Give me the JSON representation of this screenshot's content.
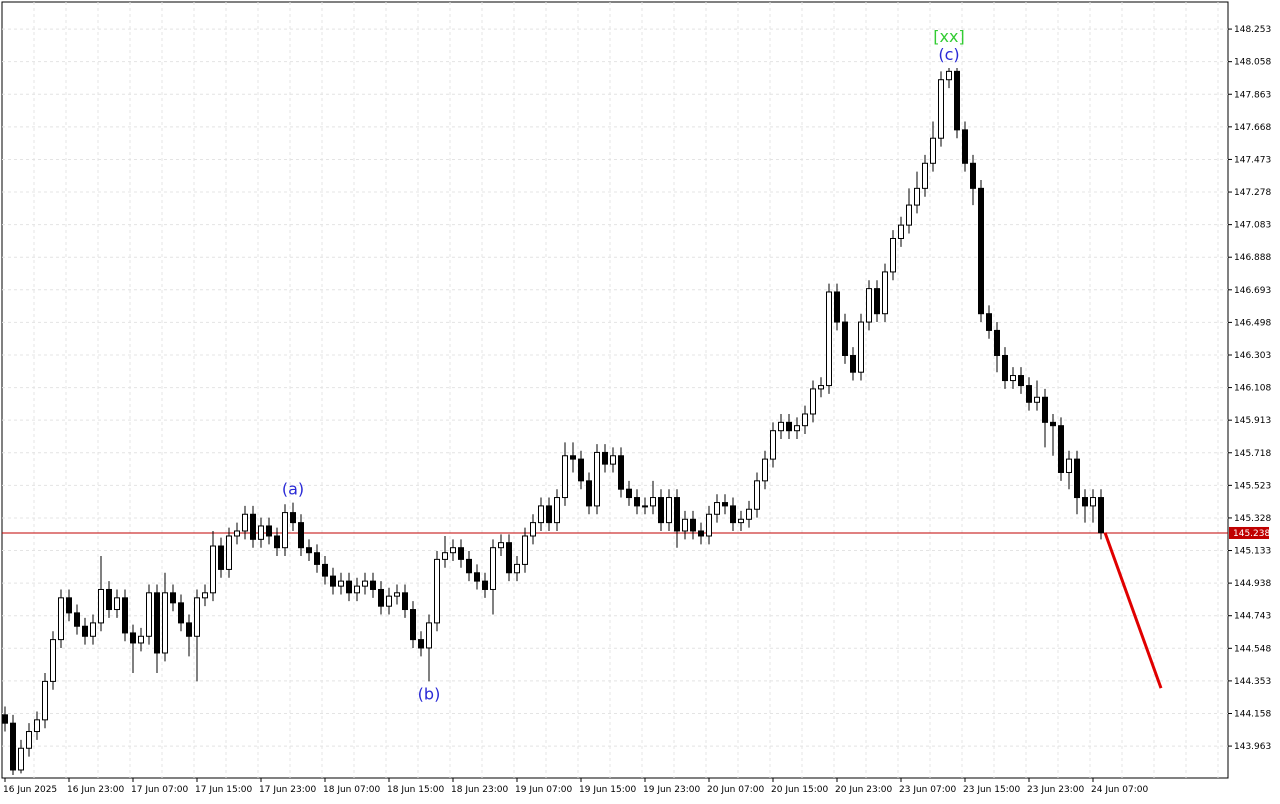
{
  "chart_data": {
    "type": "candlestick",
    "categories": [
      "16 Jun 2025",
      null,
      null,
      null,
      null,
      null,
      null,
      null,
      "16 Jun 23:00",
      null,
      null,
      null,
      null,
      null,
      null,
      null,
      "17 Jun 07:00",
      null,
      null,
      null,
      null,
      null,
      null,
      null,
      "17 Jun 15:00",
      null,
      null,
      null,
      null,
      null,
      null,
      null,
      "17 Jun 23:00",
      null,
      null,
      null,
      null,
      null,
      null,
      null,
      "18 Jun 07:00",
      null,
      null,
      null,
      null,
      null,
      null,
      null,
      "18 Jun 15:00",
      null,
      null,
      null,
      null,
      null,
      null,
      null,
      "18 Jun 23:00",
      null,
      null,
      null,
      null,
      null,
      null,
      null,
      "19 Jun 07:00",
      null,
      null,
      null,
      null,
      null,
      null,
      null,
      "19 Jun 15:00",
      null,
      null,
      null,
      null,
      null,
      null,
      null,
      "19 Jun 23:00",
      null,
      null,
      null,
      null,
      null,
      null,
      null,
      "20 Jun 07:00",
      null,
      null,
      null,
      null,
      null,
      null,
      null,
      "20 Jun 15:00",
      null,
      null,
      null,
      null,
      null,
      null,
      null,
      "20 Jun 23:00",
      null,
      null,
      null,
      null,
      null,
      null,
      null,
      "23 Jun 07:00",
      null,
      null,
      null,
      null,
      null,
      null,
      null,
      "23 Jun 15:00",
      null,
      null,
      null,
      null,
      null,
      null,
      null,
      "23 Jun 23:00",
      null,
      null,
      null,
      null,
      null,
      null,
      null,
      "24 Jun 07:00",
      null
    ],
    "open": [
      144.15,
      144.1,
      143.82,
      143.95,
      144.05,
      144.12,
      144.35,
      144.6,
      144.85,
      144.76,
      144.68,
      144.62,
      144.7,
      144.9,
      144.78,
      144.85,
      144.64,
      144.58,
      144.62,
      144.88,
      144.52,
      144.88,
      144.82,
      144.7,
      144.62,
      144.85,
      144.88,
      145.16,
      145.02,
      145.22,
      145.25,
      145.35,
      145.2,
      145.28,
      145.22,
      145.15,
      145.36,
      145.3,
      145.15,
      145.12,
      145.05,
      144.98,
      144.92,
      144.95,
      144.88,
      144.92,
      144.95,
      144.9,
      144.8,
      144.86,
      144.88,
      144.78,
      144.6,
      144.55,
      144.7,
      145.08,
      145.12,
      145.15,
      145.08,
      145.0,
      144.95,
      144.9,
      145.15,
      145.18,
      145.0,
      145.05,
      145.22,
      145.3,
      145.4,
      145.3,
      145.45,
      145.7,
      145.68,
      145.55,
      145.4,
      145.72,
      145.65,
      145.7,
      145.5,
      145.45,
      145.4,
      145.4,
      145.45,
      145.3,
      145.45,
      145.25,
      145.32,
      145.25,
      145.22,
      145.35,
      145.42,
      145.4,
      145.3,
      145.32,
      145.38,
      145.55,
      145.68,
      145.85,
      145.9,
      145.85,
      145.88,
      145.95,
      146.1,
      146.12,
      146.68,
      146.5,
      146.3,
      146.2,
      146.5,
      146.7,
      146.55,
      146.8,
      147.0,
      147.08,
      147.2,
      147.3,
      147.45,
      147.6,
      147.95,
      148.0,
      147.65,
      147.45,
      147.3,
      146.55,
      146.45,
      146.3,
      146.15,
      146.18,
      146.12,
      146.02,
      146.05,
      145.9,
      145.88,
      145.6,
      145.68,
      145.45,
      145.4,
      145.45
    ],
    "high": [
      144.2,
      144.15,
      144.0,
      144.1,
      144.17,
      144.4,
      144.65,
      144.9,
      144.9,
      144.81,
      144.73,
      144.75,
      145.1,
      144.95,
      144.9,
      144.9,
      144.69,
      144.67,
      144.93,
      144.93,
      145.0,
      144.93,
      144.87,
      144.75,
      144.9,
      144.93,
      145.25,
      145.21,
      145.27,
      145.3,
      145.4,
      145.4,
      145.33,
      145.33,
      145.27,
      145.41,
      145.42,
      145.35,
      145.2,
      145.17,
      145.1,
      145.03,
      145.0,
      145.0,
      144.97,
      145.0,
      145.0,
      144.95,
      144.91,
      144.93,
      144.93,
      144.83,
      144.65,
      144.75,
      145.13,
      145.22,
      145.2,
      145.2,
      145.13,
      145.05,
      145.0,
      145.2,
      145.23,
      145.23,
      145.1,
      145.27,
      145.35,
      145.45,
      145.45,
      145.5,
      145.78,
      145.78,
      145.73,
      145.6,
      145.77,
      145.77,
      145.75,
      145.75,
      145.55,
      145.5,
      145.45,
      145.55,
      145.5,
      145.5,
      145.5,
      145.37,
      145.37,
      145.3,
      145.4,
      145.47,
      145.47,
      145.45,
      145.37,
      145.43,
      145.6,
      145.73,
      145.9,
      145.95,
      145.95,
      145.93,
      146.0,
      146.15,
      146.17,
      146.73,
      146.73,
      146.55,
      146.35,
      146.55,
      146.75,
      146.75,
      146.85,
      147.05,
      147.13,
      147.3,
      147.4,
      147.5,
      147.7,
      148.0,
      148.02,
      148.02,
      147.7,
      147.5,
      147.35,
      146.6,
      146.5,
      146.35,
      146.23,
      146.23,
      146.17,
      146.15,
      146.1,
      145.95,
      145.93,
      145.73,
      145.73,
      145.5,
      145.5,
      145.5
    ],
    "low": [
      144.05,
      143.79,
      143.8,
      143.9,
      144.0,
      144.07,
      144.3,
      144.55,
      144.71,
      144.63,
      144.57,
      144.57,
      144.65,
      144.73,
      144.73,
      144.59,
      144.4,
      144.53,
      144.57,
      144.4,
      144.47,
      144.77,
      144.65,
      144.5,
      144.35,
      144.8,
      144.83,
      144.97,
      144.97,
      145.17,
      145.2,
      145.15,
      145.15,
      145.17,
      145.1,
      145.1,
      145.25,
      145.1,
      145.07,
      145.0,
      144.93,
      144.87,
      144.87,
      144.83,
      144.83,
      144.87,
      144.85,
      144.75,
      144.75,
      144.81,
      144.73,
      144.55,
      144.5,
      144.35,
      144.65,
      145.03,
      145.07,
      145.03,
      144.95,
      144.9,
      144.85,
      144.75,
      145.1,
      144.95,
      144.95,
      145.0,
      145.17,
      145.25,
      145.25,
      145.25,
      145.4,
      145.6,
      145.5,
      145.35,
      145.35,
      145.6,
      145.6,
      145.45,
      145.4,
      145.35,
      145.35,
      145.35,
      145.25,
      145.25,
      145.15,
      145.2,
      145.2,
      145.17,
      145.17,
      145.3,
      145.35,
      145.25,
      145.25,
      145.27,
      145.33,
      145.5,
      145.63,
      145.8,
      145.8,
      145.8,
      145.83,
      145.9,
      146.05,
      146.07,
      146.45,
      146.25,
      146.15,
      146.15,
      146.45,
      146.5,
      146.5,
      146.75,
      146.95,
      147.03,
      147.15,
      147.25,
      147.4,
      147.55,
      147.9,
      147.6,
      147.4,
      147.2,
      146.5,
      146.4,
      146.2,
      146.1,
      146.1,
      146.07,
      145.97,
      145.97,
      145.75,
      145.7,
      145.55,
      145.5,
      145.35,
      145.3,
      145.3,
      145.2
    ],
    "close": [
      144.1,
      143.82,
      143.95,
      144.05,
      144.12,
      144.35,
      144.6,
      144.85,
      144.76,
      144.68,
      144.62,
      144.7,
      144.9,
      144.78,
      144.85,
      144.64,
      144.58,
      144.62,
      144.88,
      144.52,
      144.88,
      144.82,
      144.7,
      144.62,
      144.85,
      144.88,
      145.16,
      145.02,
      145.22,
      145.25,
      145.35,
      145.2,
      145.28,
      145.22,
      145.15,
      145.36,
      145.3,
      145.15,
      145.12,
      145.05,
      144.98,
      144.92,
      144.95,
      144.88,
      144.92,
      144.95,
      144.9,
      144.8,
      144.86,
      144.88,
      144.78,
      144.6,
      144.55,
      144.7,
      145.08,
      145.12,
      145.15,
      145.08,
      145.0,
      144.95,
      144.9,
      145.15,
      145.18,
      145.0,
      145.05,
      145.22,
      145.3,
      145.4,
      145.3,
      145.45,
      145.7,
      145.68,
      145.55,
      145.4,
      145.72,
      145.65,
      145.7,
      145.5,
      145.45,
      145.4,
      145.4,
      145.45,
      145.3,
      145.45,
      145.25,
      145.32,
      145.25,
      145.22,
      145.35,
      145.42,
      145.4,
      145.3,
      145.32,
      145.38,
      145.55,
      145.68,
      145.85,
      145.9,
      145.85,
      145.88,
      145.95,
      146.1,
      146.12,
      146.68,
      146.5,
      146.3,
      146.2,
      146.5,
      146.7,
      146.55,
      146.8,
      147.0,
      147.08,
      147.2,
      147.3,
      147.45,
      147.6,
      147.95,
      148.0,
      147.65,
      147.45,
      147.3,
      146.55,
      146.45,
      146.3,
      146.15,
      146.18,
      146.12,
      146.02,
      146.05,
      145.9,
      145.88,
      145.6,
      145.68,
      145.45,
      145.4,
      145.45,
      145.24
    ],
    "up_color": "#ffffff",
    "down_color": "#000000",
    "ylim": [
      143.772,
      148.415
    ],
    "yticks": [
      143.963,
      144.158,
      144.353,
      144.548,
      144.743,
      144.938,
      145.133,
      145.328,
      145.523,
      145.718,
      145.913,
      146.108,
      146.303,
      146.498,
      146.693,
      146.888,
      147.083,
      147.278,
      147.473,
      147.668,
      147.863,
      148.058,
      148.253
    ],
    "grid": true,
    "current_price": {
      "value": 145.238,
      "color": "#c00000"
    },
    "forecast": {
      "values": [
        145.24,
        144.31
      ],
      "color": "#e00000"
    },
    "annotations": [
      {
        "text": "(a)",
        "color": "#2a2ad6"
      },
      {
        "text": "(b)",
        "color": "#2a2ad6"
      },
      {
        "text": "(c)",
        "color": "#2a2ad6"
      },
      {
        "text": "[xx]",
        "color": "#33cc33"
      }
    ]
  }
}
